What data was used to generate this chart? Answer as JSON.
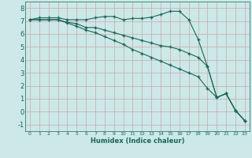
{
  "xlabel": "Humidex (Indice chaleur)",
  "bg_color": "#cce8e8",
  "grid_color_major": "#b8d8d0",
  "grid_color_minor": "#d8eee8",
  "line_color": "#1a6658",
  "xlim": [
    -0.5,
    23.5
  ],
  "ylim": [
    -1.5,
    8.5
  ],
  "xticks": [
    0,
    1,
    2,
    3,
    4,
    5,
    6,
    7,
    8,
    9,
    10,
    11,
    12,
    13,
    14,
    15,
    16,
    17,
    18,
    19,
    20,
    21,
    22,
    23
  ],
  "yticks": [
    -1,
    0,
    1,
    2,
    3,
    4,
    5,
    6,
    7,
    8
  ],
  "line1_x": [
    0,
    1,
    2,
    3,
    4,
    5,
    6,
    7,
    8,
    9,
    10,
    11,
    12,
    13,
    14,
    15,
    16,
    17,
    18,
    19,
    20,
    21,
    22,
    23
  ],
  "line1_y": [
    7.1,
    7.25,
    7.25,
    7.25,
    7.1,
    7.1,
    7.1,
    7.25,
    7.35,
    7.35,
    7.1,
    7.2,
    7.2,
    7.3,
    7.5,
    7.75,
    7.75,
    7.1,
    5.6,
    3.5,
    1.1,
    1.4,
    0.1,
    -0.7
  ],
  "line2_x": [
    0,
    1,
    2,
    3,
    4,
    5,
    6,
    7,
    8,
    9,
    10,
    11,
    12,
    13,
    14,
    15,
    16,
    17,
    18,
    19,
    20,
    21,
    22,
    23
  ],
  "line2_y": [
    7.1,
    7.1,
    7.1,
    7.1,
    6.9,
    6.8,
    6.5,
    6.5,
    6.3,
    6.1,
    5.9,
    5.7,
    5.5,
    5.3,
    5.1,
    5.0,
    4.8,
    4.5,
    4.2,
    3.5,
    1.1,
    1.4,
    0.1,
    -0.7
  ],
  "line3_x": [
    0,
    1,
    2,
    3,
    4,
    5,
    6,
    7,
    8,
    9,
    10,
    11,
    12,
    13,
    14,
    15,
    16,
    17,
    18,
    19,
    20,
    21,
    22,
    23
  ],
  "line3_y": [
    7.1,
    7.1,
    7.1,
    7.1,
    6.85,
    6.6,
    6.3,
    6.1,
    5.8,
    5.5,
    5.2,
    4.8,
    4.5,
    4.2,
    3.9,
    3.6,
    3.3,
    3.0,
    2.7,
    1.8,
    1.1,
    1.4,
    0.1,
    -0.7
  ],
  "xlabel_fontsize": 6,
  "ytick_fontsize": 6,
  "xtick_fontsize": 4.5
}
